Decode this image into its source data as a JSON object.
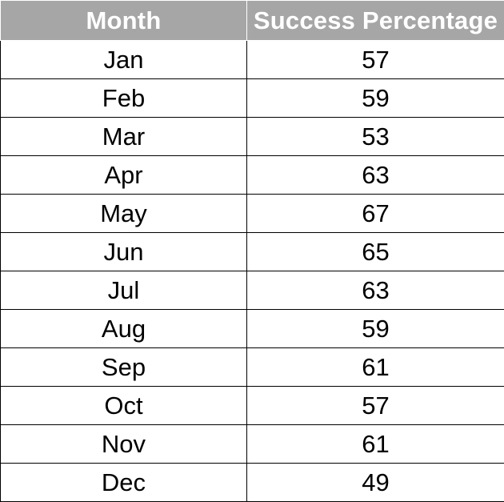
{
  "table": {
    "headers": [
      "Month",
      "Success Percentage"
    ],
    "rows": [
      {
        "month": "Jan",
        "value": "57"
      },
      {
        "month": "Feb",
        "value": "59"
      },
      {
        "month": "Mar",
        "value": "53"
      },
      {
        "month": "Apr",
        "value": "63"
      },
      {
        "month": "May",
        "value": "67"
      },
      {
        "month": "Jun",
        "value": "65"
      },
      {
        "month": "Jul",
        "value": "63"
      },
      {
        "month": "Aug",
        "value": "59"
      },
      {
        "month": "Sep",
        "value": "61"
      },
      {
        "month": "Oct",
        "value": "57"
      },
      {
        "month": "Nov",
        "value": "61"
      },
      {
        "month": "Dec",
        "value": "49"
      }
    ]
  },
  "colors": {
    "header_bg": "#a6a6a6",
    "header_text": "#ffffff",
    "cell_text": "#000000",
    "grid": "#000000"
  }
}
